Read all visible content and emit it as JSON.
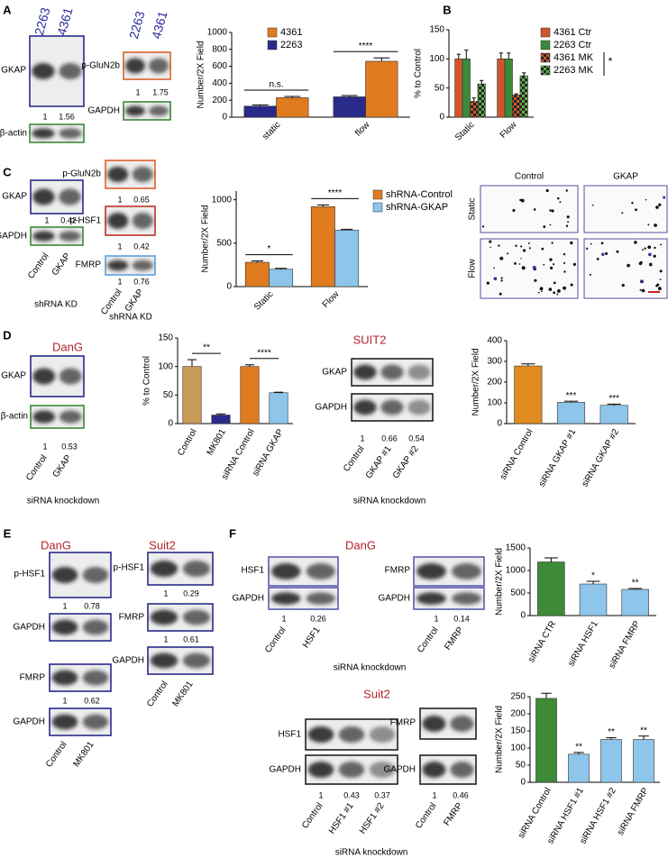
{
  "A": {
    "label": "A",
    "gkap_blot": {
      "lanes": [
        "2263",
        "4361"
      ],
      "rows": [
        "GKAP",
        "β-actin"
      ],
      "ratios": [
        1,
        1.56
      ]
    },
    "glun_blot": {
      "lanes": [
        "2263",
        "4361"
      ],
      "rows": [
        "p-GluN2b",
        "GAPDH"
      ],
      "ratios": [
        1,
        1.75
      ]
    }
  },
  "B": {
    "label": "B"
  },
  "C": {
    "label": "C",
    "gkap_blot": {
      "rows": [
        "GKAP",
        "GAPDH"
      ],
      "ratios": [
        1,
        0.42
      ],
      "lanes": [
        "Control",
        "GKAP"
      ],
      "caption": "shRNA KD"
    },
    "multi_blot": {
      "rows": [
        "p-GluN2b",
        "p-HSF1",
        "FMRP"
      ],
      "ratios": [
        [
          1,
          0.65
        ],
        [
          1,
          0.42
        ],
        [
          1,
          0.76
        ]
      ],
      "lanes": [
        "Control",
        "GKAP"
      ],
      "caption": "shRNA KD"
    },
    "images": {
      "columns": [
        "Control",
        "GKAP"
      ],
      "rows": [
        "Static",
        "Flow"
      ]
    }
  },
  "D": {
    "label": "D",
    "dang": {
      "title": "DanG",
      "rows": [
        "GKAP",
        "β-actin"
      ],
      "ratios": [
        1,
        0.53
      ],
      "lanes": [
        "Control",
        "GKAP"
      ],
      "caption": "siRNA knockdown"
    },
    "suit2": {
      "title": "SUIT2",
      "rows": [
        "GKAP",
        "GAPDH"
      ],
      "ratios": [
        1,
        0.66,
        0.54
      ],
      "lanes": [
        "Control",
        "GKAP #1",
        "GKAP #2"
      ],
      "caption": "siRNA knockdown"
    }
  },
  "E": {
    "label": "E",
    "dang": {
      "title": "DanG",
      "rows": [
        "p-HSF1",
        "GAPDH",
        "FMRP",
        "GAPDH"
      ],
      "ratios": [
        [
          1,
          0.78
        ],
        [
          1,
          0.62
        ]
      ],
      "lanes": [
        "Control",
        "MK801"
      ]
    },
    "suit2": {
      "title": "Suit2",
      "rows": [
        "p-HSF1",
        "FMRP",
        "GAPDH"
      ],
      "ratios": [
        [
          1,
          0.29
        ],
        [
          1,
          0.61
        ]
      ],
      "lanes": [
        "Control",
        "MK801"
      ]
    }
  },
  "F": {
    "label": "F",
    "dang": {
      "title": "DanG",
      "hsf1": {
        "rows": [
          "HSF1",
          "GAPDH"
        ],
        "ratios": [
          1,
          0.26
        ],
        "lanes": [
          "Control",
          "HSF1"
        ]
      },
      "fmrp": {
        "rows": [
          "FMRP",
          "GAPDH"
        ],
        "ratios": [
          1,
          0.14
        ],
        "lanes": [
          "Control",
          "FMRP"
        ]
      },
      "caption": "siRNA knockdown"
    },
    "suit2": {
      "title": "Suit2",
      "hsf1": {
        "rows": [
          "HSF1",
          "GAPDH"
        ],
        "ratios": [
          1,
          0.43,
          0.37
        ],
        "lanes": [
          "Control",
          "HSF1 #1",
          "HSF1 #2"
        ]
      },
      "fmrp": {
        "rows": [
          "FMRP",
          "GAPDH"
        ],
        "ratios": [
          1,
          0.46
        ],
        "lanes": [
          "Control",
          "FMRP"
        ]
      },
      "caption": "siRNA knockdown"
    }
  },
  "chart_data": [
    {
      "type": "bar",
      "y_label": "Number/2X Field",
      "categories": [
        "static",
        "flow"
      ],
      "series": [
        {
          "name": "4361",
          "color": "#e07b1f",
          "values": [
            230,
            660
          ],
          "errors": [
            15,
            40
          ]
        },
        {
          "name": "2263",
          "color": "#2a2a8a",
          "values": [
            130,
            240
          ],
          "errors": [
            15,
            15
          ]
        }
      ],
      "ylim": [
        0,
        1000
      ],
      "yticks": [
        0,
        200,
        400,
        600,
        800,
        1000
      ],
      "legend": "top-left",
      "annotations": [
        "n.s.",
        "****"
      ]
    },
    {
      "type": "bar",
      "y_label": "% to Control",
      "categories": [
        "Static",
        "Flow"
      ],
      "series": [
        {
          "name": "4361 Ctr",
          "color": "#d0552a",
          "values": [
            100,
            100
          ],
          "errors": [
            8,
            10
          ]
        },
        {
          "name": "2263 Ctr",
          "color": "#3a8a3a",
          "values": [
            100,
            100
          ],
          "errors": [
            15,
            10
          ]
        },
        {
          "name": "4361 MK",
          "color": "#d0552a",
          "pattern": "checker",
          "values": [
            27,
            38
          ],
          "errors": [
            6,
            2
          ]
        },
        {
          "name": "2263 MK",
          "color": "#5fb04a",
          "pattern": "checker",
          "values": [
            57,
            71
          ],
          "errors": [
            6,
            5
          ]
        }
      ],
      "ylim": [
        0,
        150
      ],
      "yticks": [
        0,
        50,
        100,
        150
      ],
      "legend": "top-right",
      "annotations": [
        "*"
      ]
    },
    {
      "type": "bar",
      "y_label": "Number/2X Field",
      "categories": [
        "Static",
        "Flow"
      ],
      "series": [
        {
          "name": "shRNA-Control",
          "color": "#e07b1f",
          "values": [
            280,
            920
          ],
          "errors": [
            15,
            20
          ]
        },
        {
          "name": "shRNA-GKAP",
          "color": "#8ec5ea",
          "values": [
            200,
            650
          ],
          "errors": [
            10,
            10
          ]
        }
      ],
      "ylim": [
        0,
        1100
      ],
      "yticks": [
        0,
        500,
        1000
      ],
      "legend": "top-right",
      "annotations": [
        "*",
        "****"
      ]
    },
    {
      "type": "bar",
      "y_label": "% to Control",
      "categories": [
        "Control",
        "MK801",
        "siRNA Control",
        "siRNA GKAP"
      ],
      "values": [
        100,
        15,
        100,
        54
      ],
      "errors": [
        12,
        2,
        3,
        1
      ],
      "colors": [
        "#c9995a",
        "#2a2a8a",
        "#e07b1f",
        "#8ec5ea"
      ],
      "ylim": [
        0,
        150
      ],
      "yticks": [
        0,
        50,
        100,
        150
      ],
      "annotations": [
        "**",
        "****"
      ]
    },
    {
      "type": "bar",
      "y_label": "Number/2X Field",
      "categories": [
        "siRNA Control",
        "siRNA GKAP #1",
        "siRNA GKAP #2"
      ],
      "values": [
        278,
        103,
        88
      ],
      "errors": [
        10,
        5,
        6
      ],
      "colors": [
        "#e08a1f",
        "#8ec5ea",
        "#8ec5ea"
      ],
      "ylim": [
        0,
        400
      ],
      "yticks": [
        0,
        100,
        200,
        300,
        400
      ],
      "annotations": [
        "***",
        "***"
      ]
    },
    {
      "type": "bar",
      "y_label": "Number/2X Field",
      "categories": [
        "siRNA CTR",
        "siRNA HSF1",
        "siRNA FMRP"
      ],
      "values": [
        1190,
        700,
        580
      ],
      "errors": [
        90,
        60,
        20
      ],
      "colors": [
        "#3d8b37",
        "#8ec5ea",
        "#8ec5ea"
      ],
      "ylim": [
        0,
        1500
      ],
      "yticks": [
        0,
        500,
        1000,
        1500
      ],
      "annotations": [
        "*",
        "**"
      ]
    },
    {
      "type": "bar",
      "y_label": "Number/2X Field",
      "categories": [
        "siRNA Control",
        "siRNA HSF1 #1",
        "siRNA HSF1 #2",
        "siRNA FMRP"
      ],
      "values": [
        245,
        82,
        125,
        125
      ],
      "errors": [
        15,
        5,
        5,
        10
      ],
      "colors": [
        "#3d8b37",
        "#8ec5ea",
        "#8ec5ea",
        "#8ec5ea"
      ],
      "ylim": [
        0,
        250
      ],
      "yticks": [
        0,
        50,
        100,
        150,
        200,
        250
      ],
      "annotations": [
        "**",
        "**",
        "**"
      ]
    }
  ]
}
